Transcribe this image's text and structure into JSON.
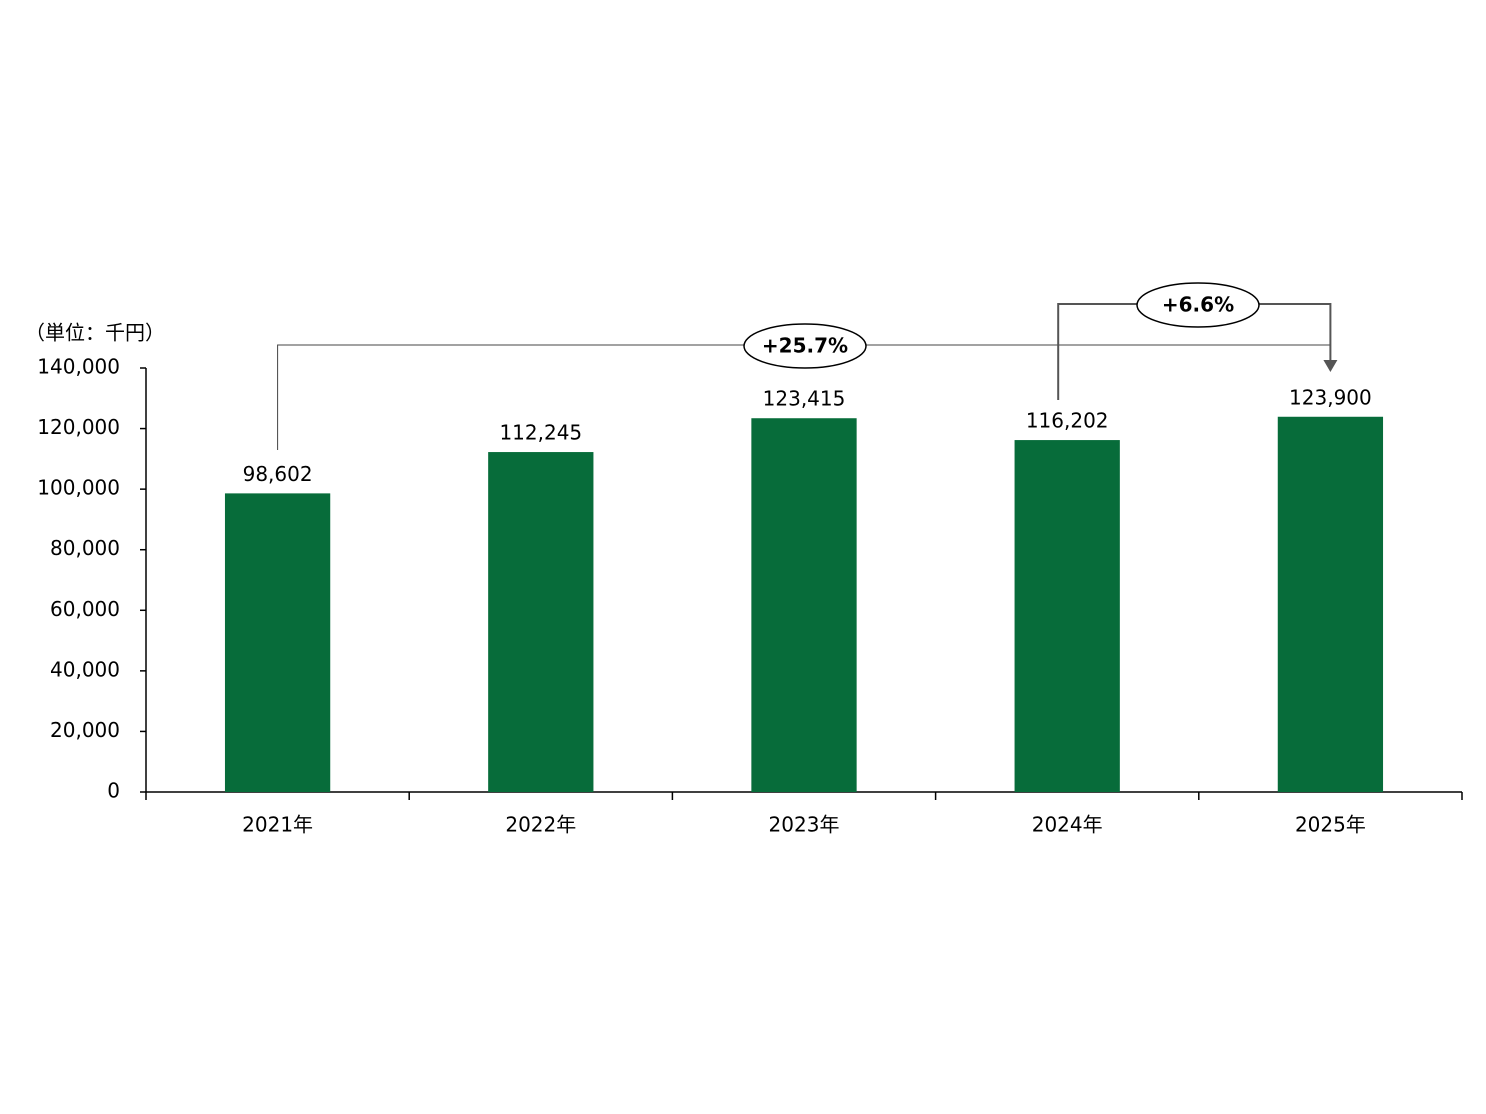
{
  "chart_data": {
    "type": "bar",
    "unit_label": "（単位：千円）",
    "categories": [
      "2021年",
      "2022年",
      "2023年",
      "2024年",
      "2025年"
    ],
    "values": [
      98602,
      112245,
      123415,
      116202,
      123900
    ],
    "value_labels": [
      "98,602",
      "112,245",
      "123,415",
      "116,202",
      "123,900"
    ],
    "color": "#076c3a",
    "ylim": [
      0,
      140000
    ],
    "yticks": [
      0,
      {
        "value": 20000,
        "label": "20,000"
      },
      {
        "value": 40000,
        "label": "40,000"
      },
      {
        "value": 60000,
        "label": "60,000"
      },
      {
        "value": 80000,
        "label": "80,000"
      },
      {
        "value": 100000,
        "label": "100,000"
      },
      {
        "value": 120000,
        "label": "120,000"
      },
      {
        "value": 140000,
        "label": "140,000"
      }
    ],
    "grid": false,
    "annotations": [
      "+25.7%",
      "+6.6%"
    ]
  }
}
